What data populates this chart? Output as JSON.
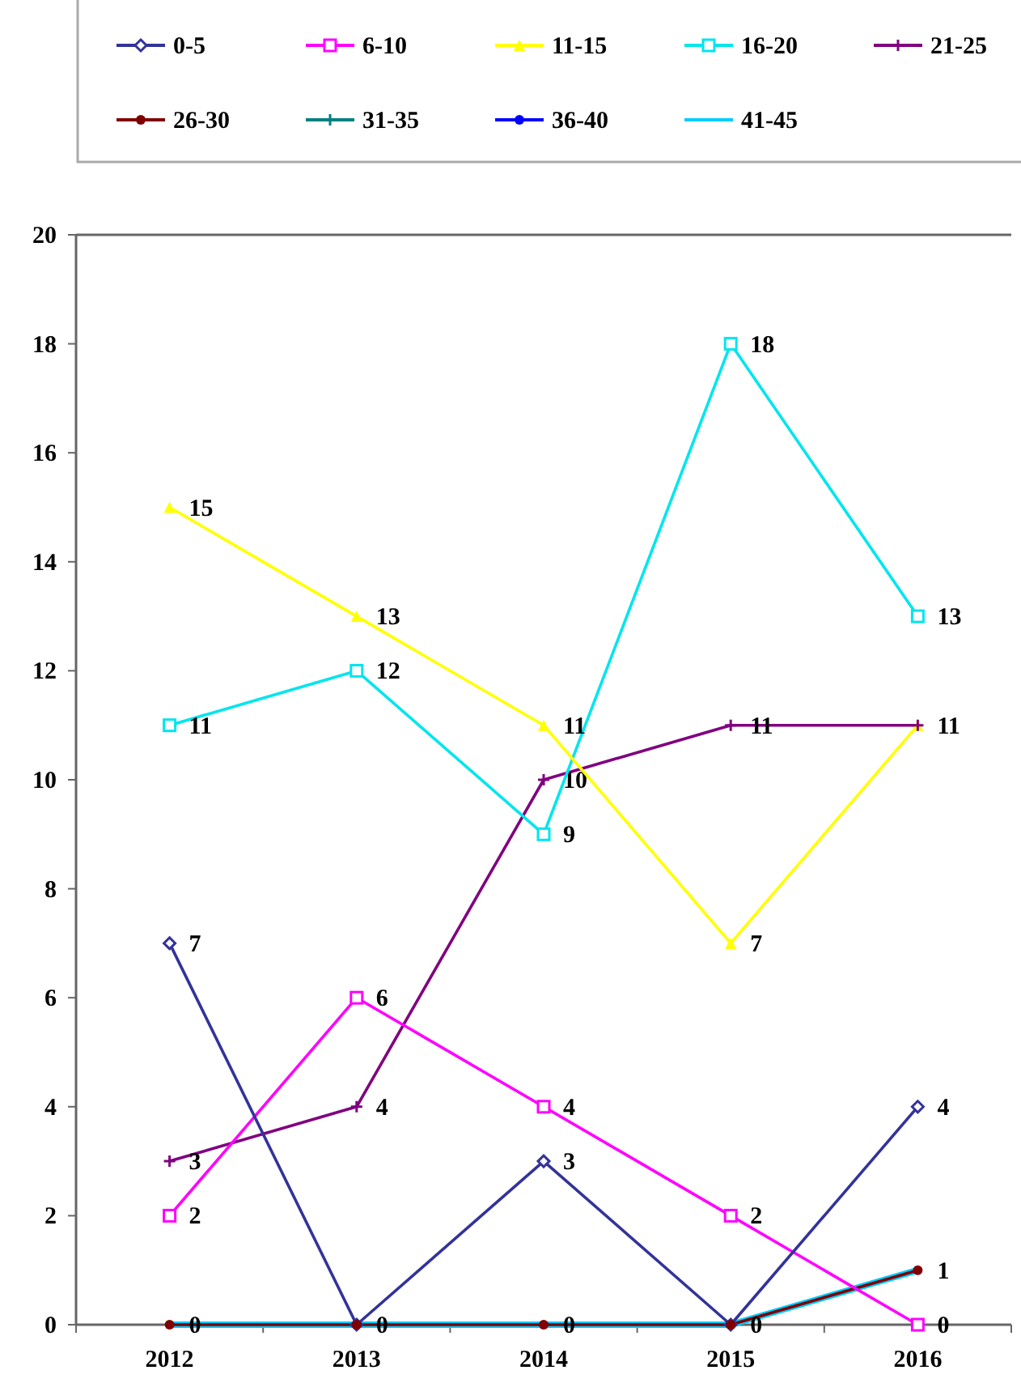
{
  "chart_data": {
    "type": "line",
    "categories": [
      "2012",
      "2013",
      "2014",
      "2015",
      "2016"
    ],
    "ylim": [
      0,
      20
    ],
    "yticks": [
      0,
      2,
      4,
      6,
      8,
      10,
      12,
      14,
      16,
      18,
      20
    ],
    "grid": false,
    "legend": "top",
    "series": [
      {
        "name": "0-5",
        "color": "#333399",
        "marker": "diamond",
        "values": [
          7,
          0,
          3,
          0,
          4
        ],
        "value_labels": [
          "7",
          "0",
          "3",
          "0",
          "4"
        ]
      },
      {
        "name": "6-10",
        "color": "#ff00ff",
        "marker": "square",
        "values": [
          2,
          6,
          4,
          2,
          0
        ],
        "value_labels": [
          "2",
          "6",
          "4",
          "2",
          "0"
        ]
      },
      {
        "name": "11-15",
        "color": "#ffff00",
        "marker": "triangle",
        "values": [
          15,
          13,
          11,
          7,
          11
        ],
        "value_labels": [
          "15",
          "13",
          "11",
          "7",
          "11"
        ]
      },
      {
        "name": "16-20",
        "color": "#00e5ee",
        "marker": "square",
        "values": [
          11,
          12,
          9,
          18,
          13
        ],
        "value_labels": [
          "11",
          "12",
          "9",
          "18",
          "13"
        ]
      },
      {
        "name": "21-25",
        "color": "#800080",
        "marker": "cross",
        "values": [
          3,
          4,
          10,
          11,
          11
        ],
        "value_labels": [
          "3",
          "4",
          "10",
          "11",
          null
        ]
      },
      {
        "name": "26-30",
        "color": "#800000",
        "marker": "circle",
        "values": [
          0,
          0,
          0,
          0,
          1
        ],
        "value_labels": [
          "0",
          null,
          "0",
          null,
          "1"
        ]
      },
      {
        "name": "31-35",
        "color": "#008080",
        "marker": "cross",
        "values": [
          null,
          null,
          null,
          null,
          null
        ]
      },
      {
        "name": "36-40",
        "color": "#0000ff",
        "marker": "circle",
        "values": [
          null,
          null,
          null,
          null,
          null
        ]
      },
      {
        "name": "41-45",
        "color": "#00ccff",
        "values": [
          0,
          0,
          0,
          0,
          1
        ]
      }
    ]
  }
}
